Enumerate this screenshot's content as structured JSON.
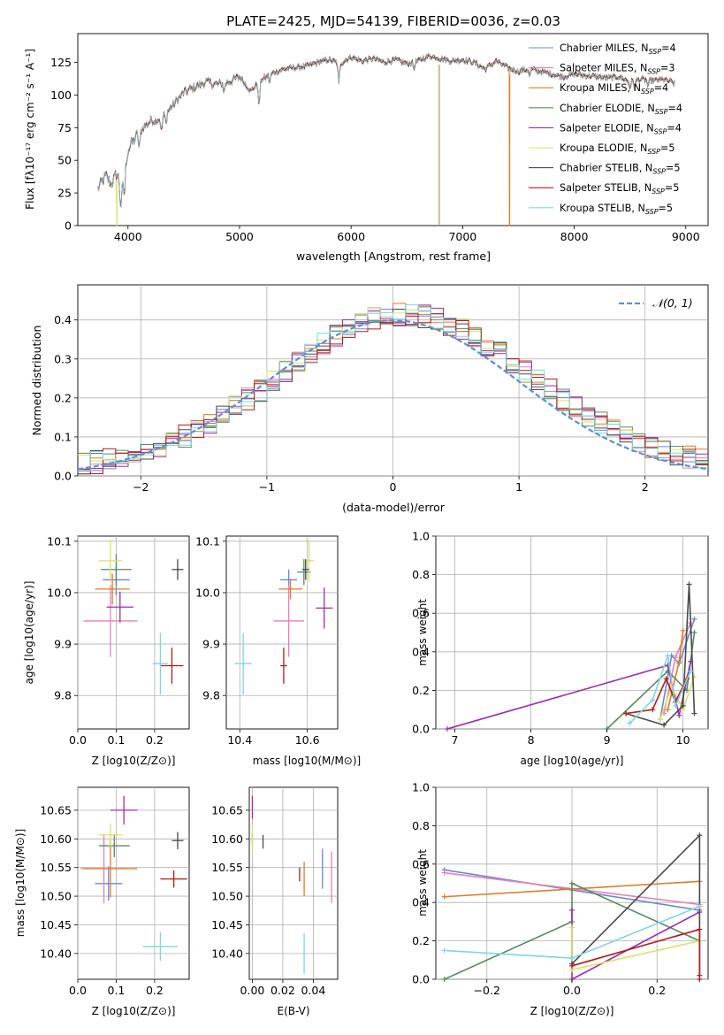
{
  "chart_data": [
    {
      "id": "spectrum",
      "type": "line",
      "title": "PLATE=2425, MJD=54139, FIBERID=0036, z=0.03",
      "xlabel": "wavelength [Angstrom, rest frame]",
      "ylabel": "Flux [fλ10⁻¹⁷ erg cm⁻² s⁻¹ A⁻¹]",
      "xlim": [
        3550,
        9200
      ],
      "ylim": [
        0,
        147
      ],
      "xticks": [
        4000,
        5000,
        6000,
        7000,
        8000,
        9000
      ],
      "yticks": [
        0,
        25,
        50,
        75,
        100,
        125
      ],
      "grid": false,
      "legend_position": "top-right",
      "continuum": {
        "x": [
          3730,
          3800,
          3850,
          3900,
          3950,
          4000,
          4050,
          4100,
          4200,
          4300,
          4400,
          4500,
          4600,
          4700,
          4800,
          4900,
          5000,
          5100,
          5200,
          5300,
          5400,
          5500,
          5600,
          5700,
          5800,
          5900,
          6000,
          6100,
          6200,
          6300,
          6400,
          6500,
          6600,
          6700,
          6800,
          6900,
          7000,
          7100,
          7200,
          7300,
          7400,
          7500,
          7600,
          7700,
          7800,
          7900,
          8000,
          8100,
          8200,
          8300,
          8400,
          8500,
          8600,
          8700,
          8800,
          8900
        ],
        "y": [
          28,
          38,
          32,
          40,
          28,
          58,
          65,
          72,
          80,
          82,
          92,
          102,
          106,
          110,
          108,
          110,
          114,
          103,
          112,
          117,
          120,
          121,
          122,
          125,
          127,
          124,
          129,
          126,
          128,
          125,
          127,
          124,
          126,
          130,
          128,
          126,
          127,
          125,
          120,
          126,
          121,
          118,
          120,
          118,
          116,
          114,
          116,
          115,
          114,
          113,
          114,
          110,
          112,
          111,
          112,
          109
        ]
      },
      "series": [
        {
          "name": "Chabrier MILES, N_SSP=4",
          "label_main": "Chabrier MILES, N",
          "label_sub": "SSP",
          "label_tail": "=4",
          "color": "#6b87d6"
        },
        {
          "name": "Salpeter MILES, N_SSP=3",
          "label_main": "Salpeter MILES, N",
          "label_sub": "SSP",
          "label_tail": "=3",
          "color": "#e581b5"
        },
        {
          "name": "Kroupa MILES, N_SSP=4",
          "label_main": "Kroupa MILES, N",
          "label_sub": "SSP",
          "label_tail": "=4",
          "color": "#e07b2a"
        },
        {
          "name": "Chabrier ELODIE, N_SSP=4",
          "label_main": "Chabrier ELODIE, N",
          "label_sub": "SSP",
          "label_tail": "=4",
          "color": "#5a8a5e"
        },
        {
          "name": "Salpeter ELODIE, N_SSP=4",
          "label_main": "Salpeter ELODIE, N",
          "label_sub": "SSP",
          "label_tail": "=4",
          "color": "#9a2fb0"
        },
        {
          "name": "Kroupa ELODIE, N_SSP=5",
          "label_main": "Kroupa ELODIE, N",
          "label_sub": "SSP",
          "label_tail": "=5",
          "color": "#d8e26a"
        },
        {
          "name": "Chabrier STELIB, N_SSP=5",
          "label_main": "Chabrier STELIB, N",
          "label_sub": "SSP",
          "label_tail": "=5",
          "color": "#4a4a4a"
        },
        {
          "name": "Salpeter STELIB, N_SSP=5",
          "label_main": "Salpeter STELIB, N",
          "label_sub": "SSP",
          "label_tail": "=5",
          "color": "#b31b1b"
        },
        {
          "name": "Kroupa STELIB, N_SSP=5",
          "label_main": "Kroupa STELIB, N",
          "label_sub": "SSP",
          "label_tail": "=5",
          "color": "#7fd6e0"
        }
      ],
      "dropouts": [
        {
          "x": 3900,
          "color": "#d8e26a"
        },
        {
          "x": 6790,
          "color": "#b59b6a"
        },
        {
          "x": 7420,
          "color": "#e07b2a"
        }
      ]
    },
    {
      "id": "residuals",
      "type": "line",
      "xlabel": "(data-model)/error",
      "ylabel": "Normed distribution",
      "xlim": [
        -2.5,
        2.5
      ],
      "ylim": [
        0,
        0.49
      ],
      "xticks": [
        -2,
        -1,
        0,
        1,
        2
      ],
      "yticks": [
        0.0,
        0.1,
        0.2,
        0.3,
        0.4
      ],
      "grid": true,
      "legend_position": "top-right",
      "reference": {
        "name": "𝒩(0, 1)",
        "color": "#5b8fd6"
      },
      "bin_width": 0.1
    },
    {
      "id": "age_vs_Z",
      "type": "scatter",
      "xlabel": "Z [log10(Z/Z⊙)]",
      "ylabel": "age  [log10(age/yr)]",
      "xlim": [
        0.0,
        0.29
      ],
      "ylim": [
        9.735,
        10.11
      ],
      "xticks": [
        0.0,
        0.1,
        0.2
      ],
      "yticks": [
        9.8,
        9.9,
        10.0,
        10.1
      ],
      "grid": true,
      "points": [
        {
          "x": 0.1,
          "y": 10.025,
          "xerr": 0.035,
          "yerr": 0.03,
          "color": "#6b87d6"
        },
        {
          "x": 0.085,
          "y": 9.945,
          "xerr": 0.07,
          "yerr": 0.07,
          "color": "#e581b5"
        },
        {
          "x": 0.09,
          "y": 10.007,
          "xerr": 0.045,
          "yerr": 0.03,
          "color": "#e07b2a"
        },
        {
          "x": 0.1,
          "y": 10.045,
          "xerr": 0.04,
          "yerr": 0.03,
          "color": "#5a8a5e"
        },
        {
          "x": 0.11,
          "y": 9.972,
          "xerr": 0.035,
          "yerr": 0.03,
          "color": "#9a2fb0"
        },
        {
          "x": 0.085,
          "y": 10.062,
          "xerr": 0.03,
          "yerr": 0.04,
          "color": "#d8e26a"
        },
        {
          "x": 0.26,
          "y": 10.045,
          "xerr": 0.015,
          "yerr": 0.02,
          "color": "#4a4a4a"
        },
        {
          "x": 0.245,
          "y": 9.858,
          "xerr": 0.03,
          "yerr": 0.035,
          "color": "#b31b1b"
        },
        {
          "x": 0.215,
          "y": 9.862,
          "xerr": 0.02,
          "yerr": 0.06,
          "color": "#7fd6e0"
        }
      ]
    },
    {
      "id": "age_vs_mass",
      "type": "scatter",
      "xlabel": "mass [log10(M/M⊙)]",
      "ylabel": "",
      "xlim": [
        10.36,
        10.69
      ],
      "ylim": [
        9.735,
        10.11
      ],
      "xticks": [
        10.4,
        10.6
      ],
      "yticks": [
        9.8,
        9.9,
        10.0,
        10.1
      ],
      "grid": true,
      "points": [
        {
          "x": 10.545,
          "y": 10.025,
          "xerr": 0.025,
          "yerr": 0.02,
          "color": "#6b87d6"
        },
        {
          "x": 10.545,
          "y": 9.945,
          "xerr": 0.045,
          "yerr": 0.07,
          "color": "#e581b5"
        },
        {
          "x": 10.55,
          "y": 10.007,
          "xerr": 0.035,
          "yerr": 0.02,
          "color": "#e07b2a"
        },
        {
          "x": 10.59,
          "y": 10.04,
          "xerr": 0.02,
          "yerr": 0.025,
          "color": "#5a8a5e"
        },
        {
          "x": 10.65,
          "y": 9.97,
          "xerr": 0.025,
          "yerr": 0.04,
          "color": "#9a2fb0"
        },
        {
          "x": 10.605,
          "y": 10.062,
          "xerr": 0.015,
          "yerr": 0.04,
          "color": "#d8e26a"
        },
        {
          "x": 10.595,
          "y": 10.045,
          "xerr": 0.01,
          "yerr": 0.02,
          "color": "#4a4a4a"
        },
        {
          "x": 10.53,
          "y": 9.858,
          "xerr": 0.01,
          "yerr": 0.035,
          "color": "#b31b1b"
        },
        {
          "x": 10.41,
          "y": 9.862,
          "xerr": 0.025,
          "yerr": 0.06,
          "color": "#7fd6e0"
        }
      ]
    },
    {
      "id": "weight_vs_age",
      "type": "line",
      "xlabel": "age  [log10(age/yr)]",
      "ylabel": "mass weight",
      "xlim": [
        6.75,
        10.33
      ],
      "ylim": [
        0.0,
        1.0
      ],
      "xticks": [
        7,
        8,
        9,
        10
      ],
      "yticks": [
        0.0,
        0.2,
        0.4,
        0.6,
        0.8,
        1.0
      ],
      "grid": true,
      "series": [
        {
          "color": "#6b87d6",
          "x": [
            9.7,
            9.85,
            9.95,
            10.15
          ],
          "y": [
            0.05,
            0.38,
            0.34,
            0.57
          ]
        },
        {
          "color": "#e581b5",
          "x": [
            9.75,
            9.9,
            10.1
          ],
          "y": [
            0.08,
            0.37,
            0.55
          ]
        },
        {
          "color": "#e07b2a",
          "x": [
            9.8,
            9.95,
            10.0
          ],
          "y": [
            0.1,
            0.35,
            0.51
          ]
        },
        {
          "color": "#5a8a5e",
          "x": [
            9.0,
            9.8,
            10.05,
            10.15
          ],
          "y": [
            0.0,
            0.3,
            0.2,
            0.5
          ]
        },
        {
          "color": "#9a2fb0",
          "x": [
            6.9,
            9.8,
            9.95,
            10.1
          ],
          "y": [
            0.0,
            0.33,
            0.07,
            0.35
          ]
        },
        {
          "color": "#d8e26a",
          "x": [
            9.7,
            9.85,
            10.0,
            10.15
          ],
          "y": [
            0.05,
            0.22,
            0.1,
            0.27
          ]
        },
        {
          "color": "#4a4a4a",
          "x": [
            9.25,
            9.75,
            10.0,
            10.08,
            10.15
          ],
          "y": [
            0.08,
            0.02,
            0.12,
            0.75,
            0.08
          ]
        },
        {
          "color": "#b31b1b",
          "x": [
            9.25,
            9.6,
            9.78,
            9.9,
            10.05
          ],
          "y": [
            0.08,
            0.1,
            0.26,
            0.14,
            0.26
          ]
        },
        {
          "color": "#7fd6e0",
          "x": [
            9.3,
            9.6,
            9.8,
            9.9,
            10.1
          ],
          "y": [
            0.03,
            0.15,
            0.38,
            0.12,
            0.3
          ]
        }
      ]
    },
    {
      "id": "mass_vs_Z",
      "type": "scatter",
      "xlabel": "Z [log10(Z/Z⊙)]",
      "ylabel": "mass [log10(M/M⊙)]",
      "xlim": [
        0.0,
        0.29
      ],
      "ylim": [
        10.355,
        10.69
      ],
      "xticks": [
        0.0,
        0.1,
        0.2
      ],
      "yticks": [
        10.4,
        10.45,
        10.5,
        10.55,
        10.6,
        10.65
      ],
      "grid": true,
      "points": [
        {
          "x": 0.08,
          "y": 10.522,
          "xerr": 0.035,
          "yerr": 0.03,
          "color": "#6b87d6"
        },
        {
          "x": 0.068,
          "y": 10.548,
          "xerr": 0.06,
          "yerr": 0.06,
          "color": "#e581b5"
        },
        {
          "x": 0.085,
          "y": 10.548,
          "xerr": 0.07,
          "yerr": 0.05,
          "color": "#e07b2a"
        },
        {
          "x": 0.095,
          "y": 10.588,
          "xerr": 0.04,
          "yerr": 0.02,
          "color": "#5a8a5e"
        },
        {
          "x": 0.12,
          "y": 10.65,
          "xerr": 0.035,
          "yerr": 0.025,
          "color": "#9a2fb0"
        },
        {
          "x": 0.085,
          "y": 10.607,
          "xerr": 0.03,
          "yerr": 0.02,
          "color": "#d8e26a"
        },
        {
          "x": 0.26,
          "y": 10.597,
          "xerr": 0.015,
          "yerr": 0.015,
          "color": "#4a4a4a"
        },
        {
          "x": 0.25,
          "y": 10.53,
          "xerr": 0.035,
          "yerr": 0.015,
          "color": "#b31b1b"
        },
        {
          "x": 0.215,
          "y": 10.412,
          "xerr": 0.045,
          "yerr": 0.025,
          "color": "#7fd6e0"
        }
      ]
    },
    {
      "id": "mass_vs_EBV",
      "type": "scatter",
      "xlabel": "E(B-V)",
      "ylabel": "",
      "xlim": [
        -0.002,
        0.056
      ],
      "ylim": [
        10.355,
        10.69
      ],
      "xticks": [
        0.0,
        0.02,
        0.04
      ],
      "yticks": [
        10.4,
        10.45,
        10.5,
        10.55,
        10.6,
        10.65
      ],
      "grid": true,
      "points": [
        {
          "x": 0.046,
          "y": 10.548,
          "xerr": 0.0,
          "yerr": 0.035,
          "color": "#6b87d6"
        },
        {
          "x": 0.052,
          "y": 10.533,
          "xerr": 0.0,
          "yerr": 0.045,
          "color": "#e581b5"
        },
        {
          "x": 0.034,
          "y": 10.53,
          "xerr": 0.0,
          "yerr": 0.03,
          "color": "#e07b2a"
        },
        {
          "x": 0.0,
          "y": 10.6,
          "xerr": 0.0,
          "yerr": 0.01,
          "color": "#5a8a5e"
        },
        {
          "x": 0.0,
          "y": 10.655,
          "xerr": 0.0,
          "yerr": 0.02,
          "color": "#9a2fb0"
        },
        {
          "x": 0.0,
          "y": 10.6,
          "xerr": 0.0,
          "yerr": 0.02,
          "color": "#d8e26a"
        },
        {
          "x": 0.007,
          "y": 10.595,
          "xerr": 0.0,
          "yerr": 0.012,
          "color": "#4a4a4a"
        },
        {
          "x": 0.031,
          "y": 10.538,
          "xerr": 0.0,
          "yerr": 0.012,
          "color": "#b31b1b"
        },
        {
          "x": 0.034,
          "y": 10.4,
          "xerr": 0.0,
          "yerr": 0.035,
          "color": "#7fd6e0"
        }
      ]
    },
    {
      "id": "weight_vs_Z",
      "type": "line",
      "xlabel": "Z [log10(Z/Z⊙)]",
      "ylabel": "mass weight",
      "xlim": [
        -0.32,
        0.32
      ],
      "ylim": [
        0.0,
        1.0
      ],
      "xticks": [
        -0.2,
        0.0,
        0.2
      ],
      "yticks": [
        0.0,
        0.2,
        0.4,
        0.6,
        0.8,
        1.0
      ],
      "grid": true,
      "series": [
        {
          "color": "#6b87d6",
          "x": [
            -0.3,
            0.3
          ],
          "y": [
            0.57,
            0.36
          ]
        },
        {
          "color": "#e581b5",
          "x": [
            -0.3,
            0.3
          ],
          "y": [
            0.555,
            0.39
          ]
        },
        {
          "color": "#e07b2a",
          "x": [
            -0.3,
            0.3
          ],
          "y": [
            0.43,
            0.51
          ]
        },
        {
          "color": "#5a8a5e",
          "x": [
            -0.3,
            0.0,
            0.0,
            0.3
          ],
          "y": [
            0.0,
            0.3,
            0.5,
            0.2
          ]
        },
        {
          "color": "#9a2fb0",
          "x": [
            0.0,
            0.0,
            0.3
          ],
          "y": [
            0.36,
            0.0,
            0.35
          ]
        },
        {
          "color": "#d8e26a",
          "x": [
            0.0,
            0.0,
            0.3
          ],
          "y": [
            0.27,
            0.05,
            0.2
          ]
        },
        {
          "color": "#4a4a4a",
          "x": [
            0.0,
            0.3,
            0.3
          ],
          "y": [
            0.08,
            0.75,
            0.02
          ]
        },
        {
          "color": "#b31b1b",
          "x": [
            0.0,
            0.3,
            0.3
          ],
          "y": [
            0.07,
            0.26,
            0.0
          ]
        },
        {
          "color": "#7fd6e0",
          "x": [
            -0.3,
            0.0,
            0.3
          ],
          "y": [
            0.15,
            0.11,
            0.38
          ]
        }
      ]
    }
  ]
}
